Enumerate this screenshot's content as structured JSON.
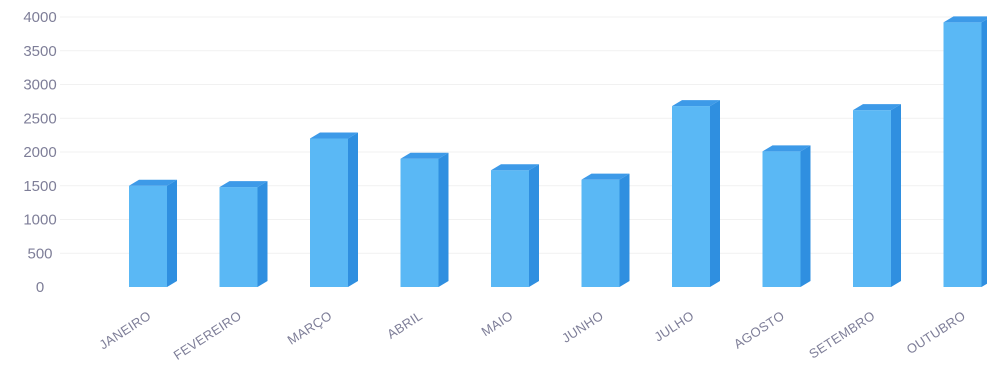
{
  "chart_data": {
    "type": "bar",
    "title": "",
    "xlabel": "",
    "ylabel": "",
    "ylim": [
      0,
      4000
    ],
    "yticks": [
      0,
      500,
      1000,
      1500,
      2000,
      2500,
      3000,
      3500,
      4000
    ],
    "grid": true,
    "legend": "none",
    "bar_style": "3d",
    "categories": [
      "JANEIRO",
      "FEVEREIRO",
      "MARÇO",
      "ABRIL",
      "MAIO",
      "JUNHO",
      "JULHO",
      "AGOSTO",
      "SETEMBRO",
      "OUTUBRO"
    ],
    "values": [
      1500,
      1480,
      2200,
      1900,
      1730,
      1590,
      2680,
      2010,
      2620,
      3920
    ],
    "colors": {
      "bar_front": "#5ab8f5",
      "bar_side": "#2f8fe0",
      "bar_top": "#3d9ae8"
    }
  }
}
